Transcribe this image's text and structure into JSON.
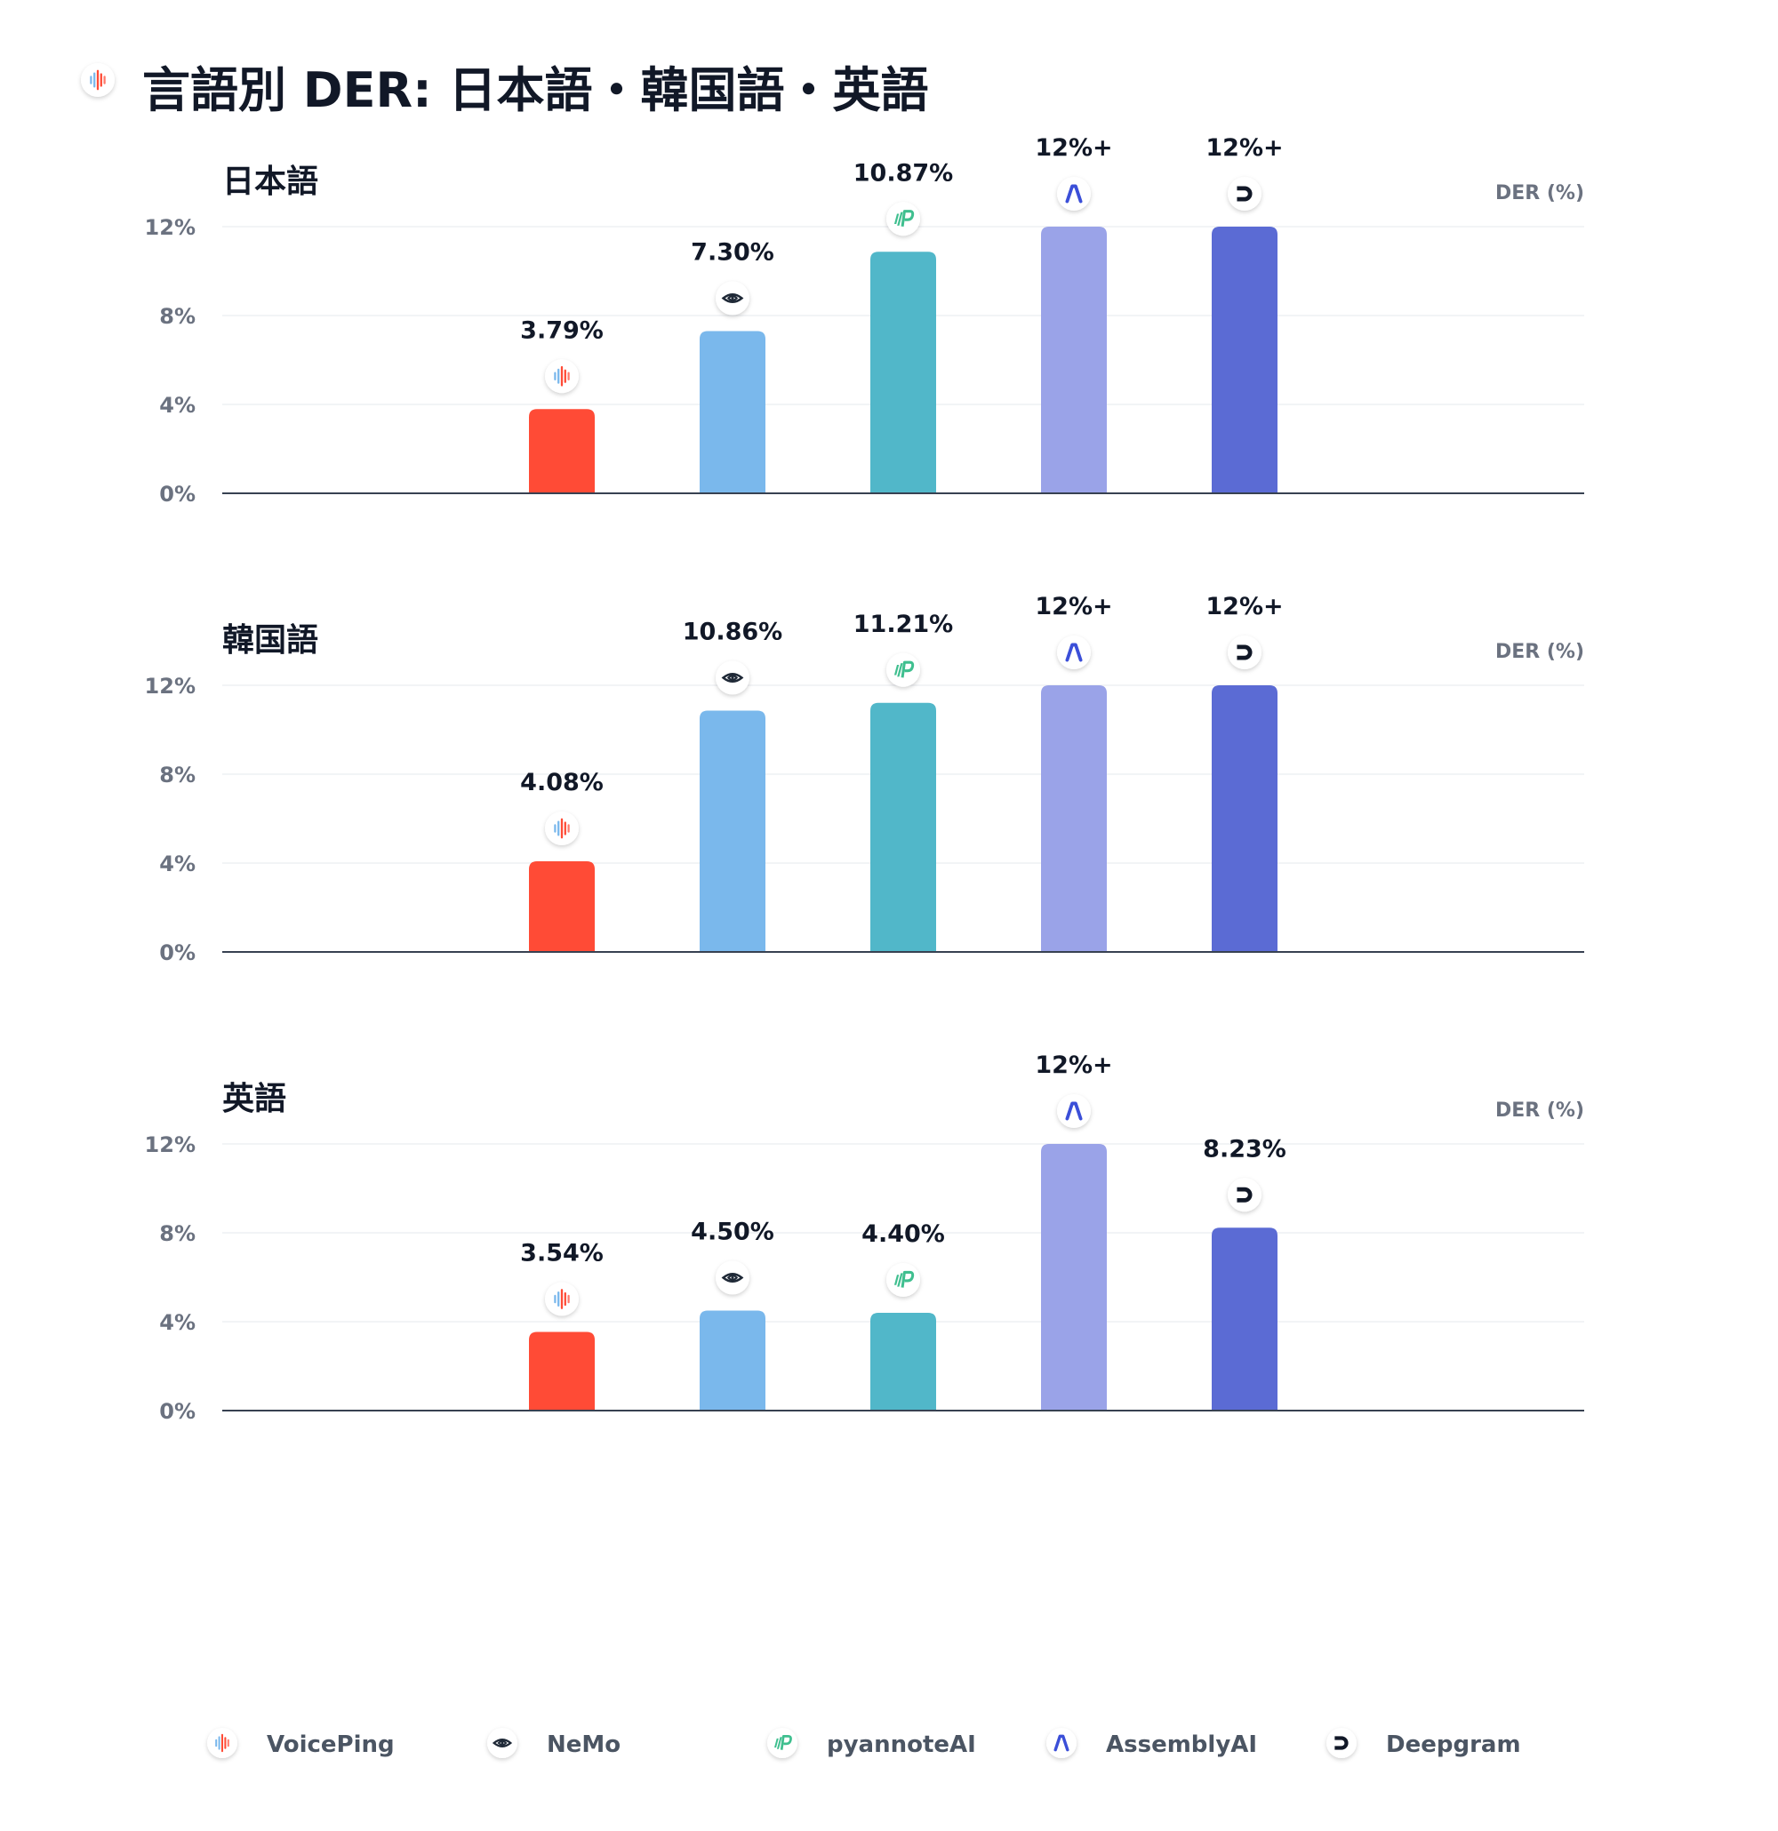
{
  "chart_data": {
    "type": "bar",
    "title": "言語別 DER: 日本語・韓国語・英語",
    "unit_label": "DER (%)",
    "y_ticks": [
      "0%",
      "4%",
      "8%",
      "12%"
    ],
    "ylim": [
      0,
      12
    ],
    "series": [
      {
        "name": "VoicePing",
        "color": "#ff4b36",
        "icon": "voiceping-waveform-icon"
      },
      {
        "name": "NeMo",
        "color": "#7ab8ec",
        "icon": "nvidia-eye-icon"
      },
      {
        "name": "pyannoteAI",
        "color": "#51b7c9",
        "icon": "pyannote-logo-icon"
      },
      {
        "name": "AssemblyAI",
        "color": "#9aa3e8",
        "icon": "assemblyai-logo-icon"
      },
      {
        "name": "Deepgram",
        "color": "#5b6bd4",
        "icon": "deepgram-logo-icon"
      }
    ],
    "panels": [
      {
        "title": "日本語",
        "values": [
          3.79,
          7.3,
          10.87,
          12,
          12
        ],
        "labels": [
          "3.79%",
          "7.30%",
          "10.87%",
          "12%+",
          "12%+"
        ]
      },
      {
        "title": "韓国語",
        "values": [
          4.08,
          10.86,
          11.21,
          12,
          12
        ],
        "labels": [
          "4.08%",
          "10.86%",
          "11.21%",
          "12%+",
          "12%+"
        ]
      },
      {
        "title": "英語",
        "values": [
          3.54,
          4.5,
          4.4,
          12,
          8.23
        ],
        "labels": [
          "3.54%",
          "4.50%",
          "4.40%",
          "12%+",
          "8.23%"
        ]
      }
    ],
    "grid": true,
    "legend": "bottom"
  }
}
